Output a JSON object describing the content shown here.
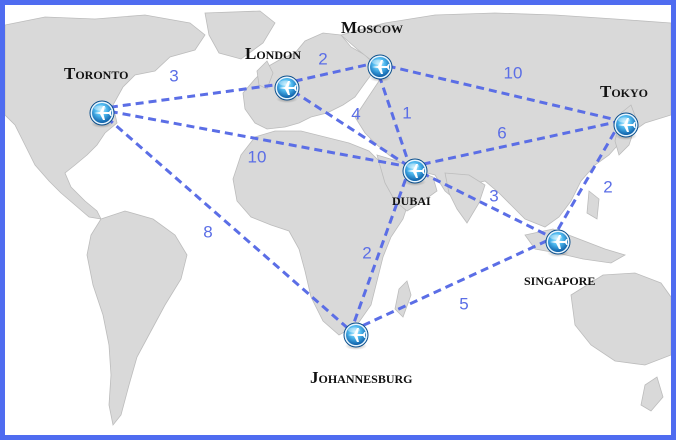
{
  "colors": {
    "frame": "#4f6cf0",
    "route": "#5b6ee6",
    "weight_text": "#5b6ee6",
    "land": "#d9d9d9",
    "land_edge": "#bcbcbc",
    "sea": "#ffffff",
    "node_outer": "#1f8fd6",
    "node_inner": "#6ed0ff",
    "city_text": "#111111"
  },
  "node_icon": "airplane-icon",
  "cities": [
    {
      "id": "toronto",
      "label": "Toronto"
    },
    {
      "id": "london",
      "label": "London"
    },
    {
      "id": "moscow",
      "label": "Moscow"
    },
    {
      "id": "tokyo",
      "label": "Tokyo"
    },
    {
      "id": "dubai",
      "label": "dubai"
    },
    {
      "id": "singapore",
      "label": "singapore"
    },
    {
      "id": "johannesburg",
      "label": "Johannesburg"
    }
  ],
  "routes": [
    {
      "from": "toronto",
      "to": "london",
      "weight": "3"
    },
    {
      "from": "london",
      "to": "moscow",
      "weight": "2"
    },
    {
      "from": "moscow",
      "to": "tokyo",
      "weight": "10"
    },
    {
      "from": "london",
      "to": "dubai",
      "weight": "4"
    },
    {
      "from": "moscow",
      "to": "dubai",
      "weight": "1"
    },
    {
      "from": "dubai",
      "to": "tokyo",
      "weight": "6"
    },
    {
      "from": "toronto",
      "to": "dubai",
      "weight": "10"
    },
    {
      "from": "dubai",
      "to": "singapore",
      "weight": "3"
    },
    {
      "from": "tokyo",
      "to": "singapore",
      "weight": "2"
    },
    {
      "from": "toronto",
      "to": "johannesburg",
      "weight": "8"
    },
    {
      "from": "dubai",
      "to": "johannesburg",
      "weight": "2"
    },
    {
      "from": "johannesburg",
      "to": "singapore",
      "weight": "5"
    }
  ]
}
